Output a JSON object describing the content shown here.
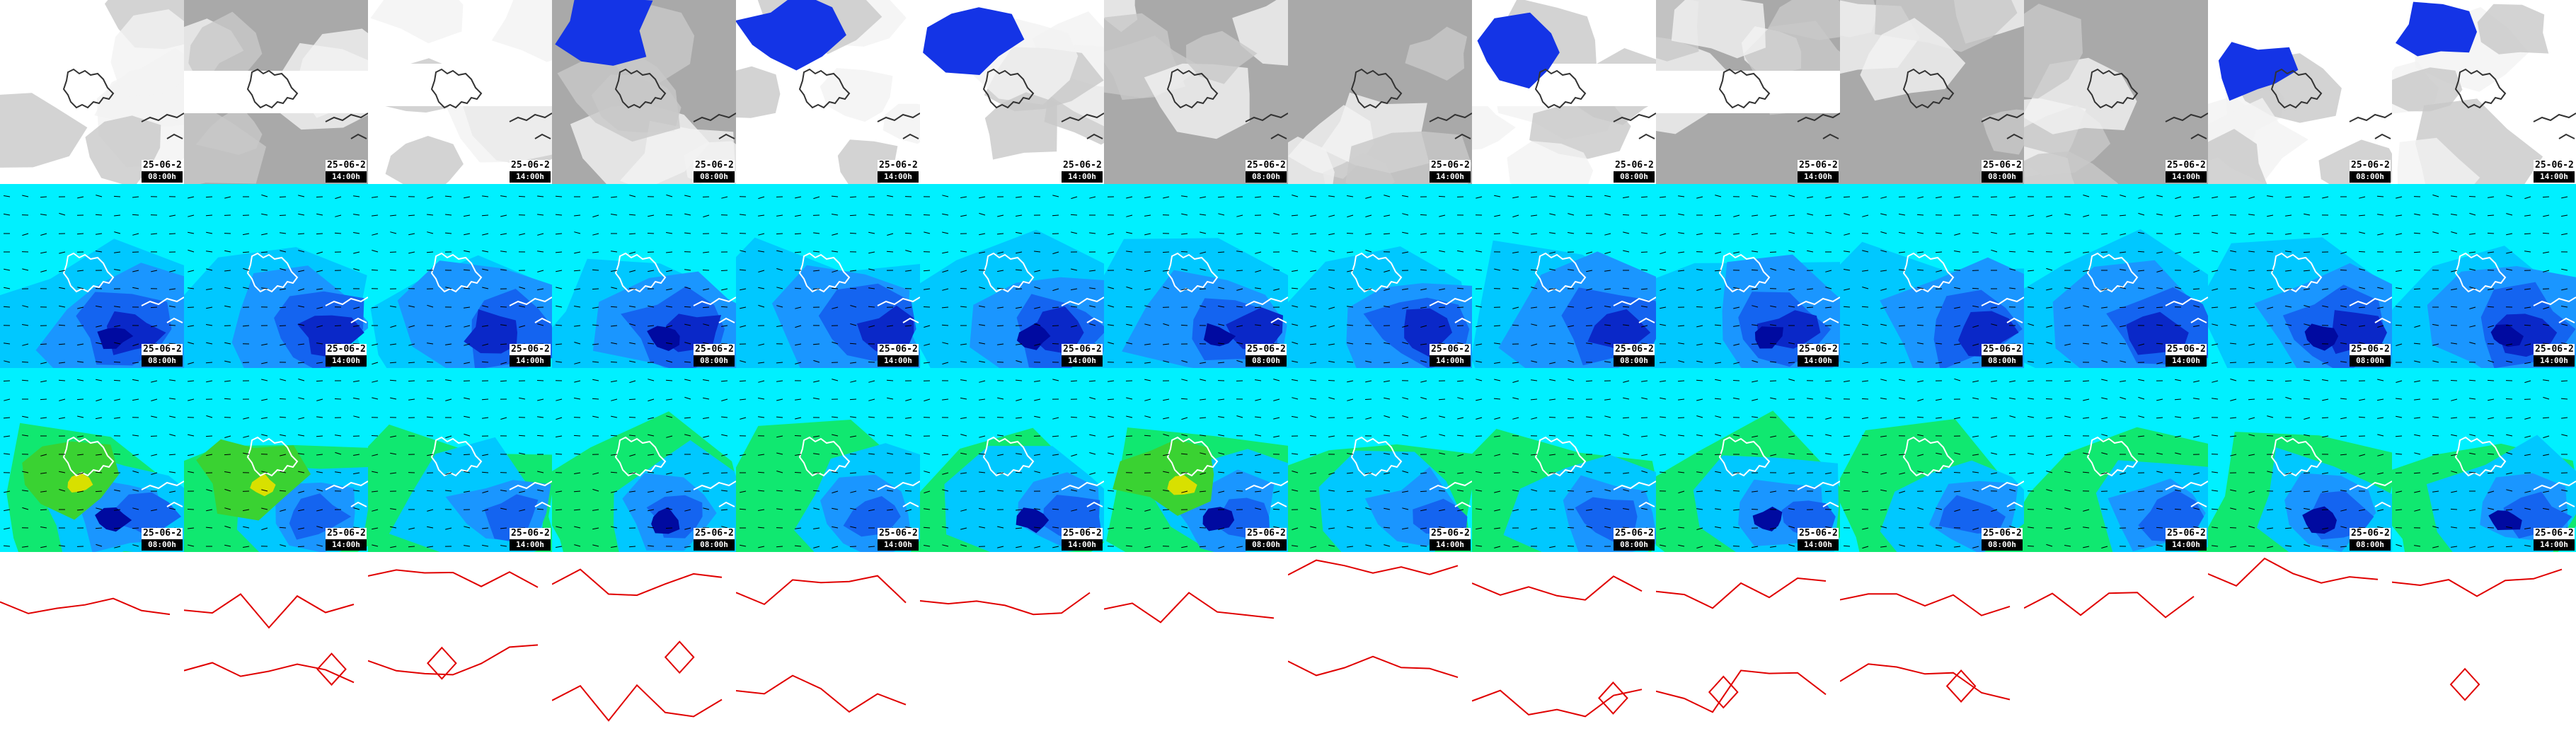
{
  "rows": [
    {
      "name": "cloud-cover",
      "tiles": [
        {
          "date": "25-06-2",
          "time": "08:00h"
        },
        {
          "date": "25-06-2",
          "time": "14:00h"
        },
        {
          "date": "25-06-2",
          "time": "14:00h"
        },
        {
          "date": "25-06-2",
          "time": "08:00h"
        },
        {
          "date": "25-06-2",
          "time": "14:00h"
        },
        {
          "date": "25-06-2",
          "time": "14:00h"
        },
        {
          "date": "25-06-2",
          "time": "08:00h"
        },
        {
          "date": "25-06-2",
          "time": "14:00h"
        },
        {
          "date": "25-06-2",
          "time": "08:00h"
        },
        {
          "date": "25-06-2",
          "time": "14:00h"
        },
        {
          "date": "25-06-2",
          "time": "08:00h"
        },
        {
          "date": "25-06-2",
          "time": "14:00h"
        },
        {
          "date": "25-06-2",
          "time": "08:00h"
        },
        {
          "date": "25-06-2",
          "time": "14:00h"
        }
      ]
    },
    {
      "name": "wind-speed",
      "tiles": [
        {
          "date": "25-06-2",
          "time": "08:00h"
        },
        {
          "date": "25-06-2",
          "time": "14:00h"
        },
        {
          "date": "25-06-2",
          "time": "14:00h"
        },
        {
          "date": "25-06-2",
          "time": "08:00h"
        },
        {
          "date": "25-06-2",
          "time": "14:00h"
        },
        {
          "date": "25-06-2",
          "time": "14:00h"
        },
        {
          "date": "25-06-2",
          "time": "08:00h"
        },
        {
          "date": "25-06-2",
          "time": "14:00h"
        },
        {
          "date": "25-06-2",
          "time": "08:00h"
        },
        {
          "date": "25-06-2",
          "time": "14:00h"
        },
        {
          "date": "25-06-2",
          "time": "08:00h"
        },
        {
          "date": "25-06-2",
          "time": "14:00h"
        },
        {
          "date": "25-06-2",
          "time": "08:00h"
        },
        {
          "date": "25-06-2",
          "time": "14:00h"
        }
      ]
    },
    {
      "name": "wind-gusts",
      "tiles": [
        {
          "date": "25-06-2",
          "time": "08:00h"
        },
        {
          "date": "25-06-2",
          "time": "14:00h"
        },
        {
          "date": "25-06-2",
          "time": "14:00h"
        },
        {
          "date": "25-06-2",
          "time": "08:00h"
        },
        {
          "date": "25-06-2",
          "time": "14:00h"
        },
        {
          "date": "25-06-2",
          "time": "14:00h"
        },
        {
          "date": "25-06-2",
          "time": "08:00h"
        },
        {
          "date": "25-06-2",
          "time": "14:00h"
        },
        {
          "date": "25-06-2",
          "time": "08:00h"
        },
        {
          "date": "25-06-2",
          "time": "14:00h"
        },
        {
          "date": "25-06-2",
          "time": "08:00h"
        },
        {
          "date": "25-06-2",
          "time": "14:00h"
        },
        {
          "date": "25-06-2",
          "time": "08:00h"
        },
        {
          "date": "25-06-2",
          "time": "14:00h"
        }
      ]
    },
    {
      "name": "pressure-isobars",
      "tiles": [
        {},
        {},
        {},
        {},
        {},
        {},
        {},
        {},
        {},
        {},
        {},
        {},
        {},
        {}
      ]
    }
  ],
  "colors": {
    "cloud_light": "#f2f2f2",
    "cloud_mid": "#c8c8c8",
    "cloud_dark": "#a9a9a9",
    "precip_blue": "#1434e6",
    "wind_cyan": "#00f0ff",
    "wind_sky": "#00c8ff",
    "wind_blue1": "#1a96ff",
    "wind_blue2": "#1464f0",
    "wind_blue3": "#0a28c8",
    "wind_navy": "#000aa0",
    "gust_green": "#10e870",
    "gust_lime": "#3ad232",
    "gust_yellow": "#d8e000",
    "isobar_red": "#e00000"
  }
}
